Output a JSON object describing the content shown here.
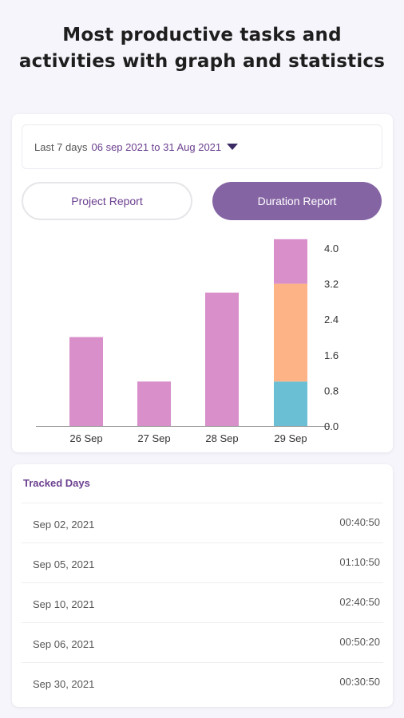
{
  "headline": {
    "line1": "Most productive tasks and",
    "line2": "activities with graph and statistics"
  },
  "filter": {
    "prefix": "Last 7 days",
    "range": "06 sep 2021 to 31 Aug 2021",
    "icon": "caret-down-icon"
  },
  "tabs": {
    "project": "Project Report",
    "duration": "Duration Report",
    "active": "duration"
  },
  "chart_data": {
    "type": "bar",
    "stacked": true,
    "categories": [
      "26 Sep",
      "27 Sep",
      "28 Sep",
      "29 Sep"
    ],
    "series": [
      {
        "color": "#6bbfd4",
        "values": [
          0,
          0,
          0,
          1.0
        ]
      },
      {
        "color": "#fdb386",
        "values": [
          0,
          0,
          0,
          2.2
        ]
      },
      {
        "color": "#d88fca",
        "values": [
          2.0,
          1.0,
          3.0,
          1.0
        ]
      }
    ],
    "yticks": [
      "0.0",
      "0.8",
      "1.6",
      "2.4",
      "3.2",
      "4.0"
    ],
    "ylim": [
      0,
      4.0
    ],
    "y_axis_side": "right",
    "grid": false
  },
  "tracked": {
    "title": "Tracked Days",
    "rows": [
      {
        "date": "Sep 02, 2021",
        "duration": "00:40:50"
      },
      {
        "date": "Sep 05, 2021",
        "duration": "01:10:50"
      },
      {
        "date": "Sep 10, 2021",
        "duration": "02:40:50"
      },
      {
        "date": "Sep 06, 2021",
        "duration": "00:50:20"
      },
      {
        "date": "Sep 30, 2021",
        "duration": "00:30:50"
      }
    ]
  },
  "colors": {
    "accent": "#8564a4",
    "accent_text": "#6b3f8f",
    "bar_pink": "#d88fca",
    "bar_orange": "#fdb386",
    "bar_teal": "#6bbfd4"
  }
}
